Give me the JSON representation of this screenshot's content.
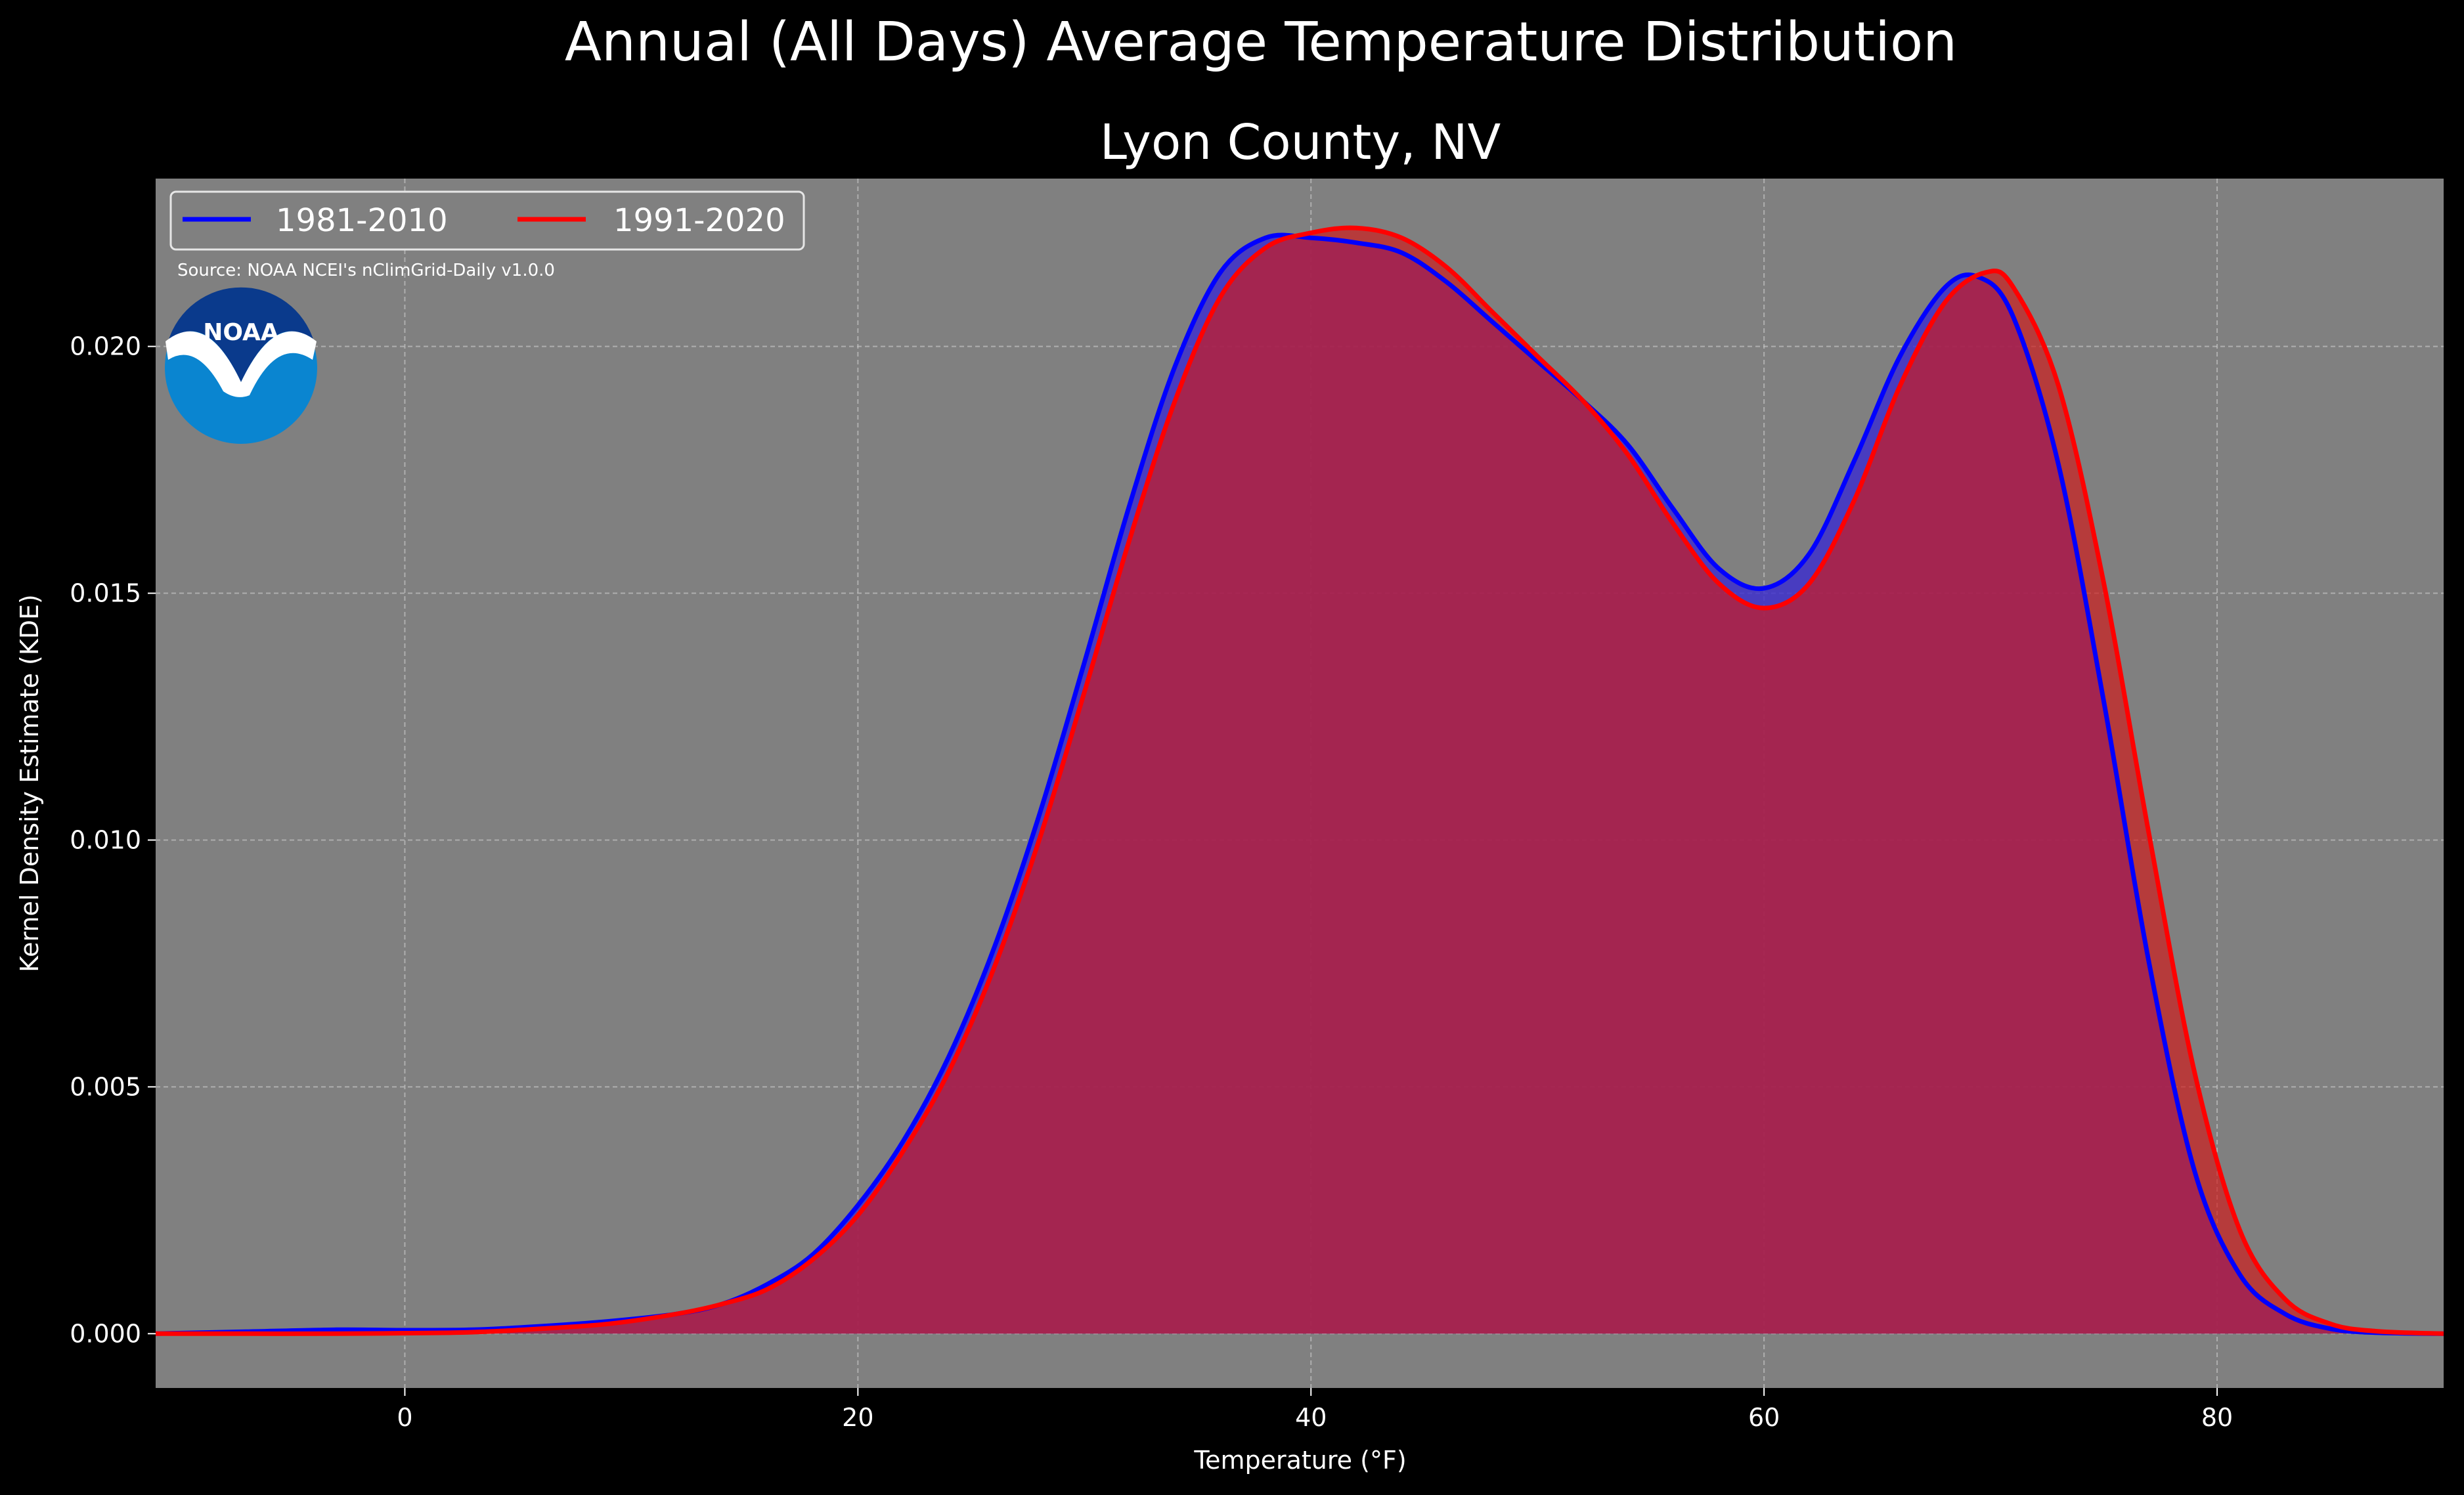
{
  "chart_data": {
    "type": "area",
    "suptitle": "Annual (All Days) Average Temperature Distribution",
    "title": "Lyon County, NV",
    "xlabel": "Temperature (°F)",
    "ylabel": "Kernel Density Estimate (KDE)",
    "xlim": [
      -11,
      90
    ],
    "ylim": [
      -0.0011,
      0.0234
    ],
    "x_ticks": [
      0,
      20,
      40,
      60,
      80
    ],
    "y_ticks": [
      0.0,
      0.005,
      0.01,
      0.015,
      0.02
    ],
    "x_tick_labels": [
      "0",
      "20",
      "40",
      "60",
      "80"
    ],
    "y_tick_labels": [
      "0.000",
      "0.005",
      "0.010",
      "0.015",
      "0.020"
    ],
    "grid": true,
    "legend_position": "top-left",
    "source_note": "Source: NOAA NCEI's nClimGrid-Daily v1.0.0",
    "background_color": "#000000",
    "plot_background_color": "#808080",
    "series": [
      {
        "name": "1981-2010",
        "color": "#0000ff",
        "fill_color": "#3a2ad0",
        "points": [
          [
            -11,
            0.0
          ],
          [
            -7,
            4e-05
          ],
          [
            -3,
            8e-05
          ],
          [
            0,
            7e-05
          ],
          [
            3,
            8e-05
          ],
          [
            6,
            0.00015
          ],
          [
            9,
            0.00025
          ],
          [
            12,
            0.0004
          ],
          [
            14,
            0.0006
          ],
          [
            16,
            0.001
          ],
          [
            18,
            0.0016
          ],
          [
            20,
            0.0026
          ],
          [
            22,
            0.0039
          ],
          [
            24,
            0.0056
          ],
          [
            26,
            0.0078
          ],
          [
            28,
            0.0105
          ],
          [
            30,
            0.0136
          ],
          [
            32,
            0.0168
          ],
          [
            34,
            0.0196
          ],
          [
            36,
            0.0215
          ],
          [
            38,
            0.0222
          ],
          [
            40,
            0.0222
          ],
          [
            42,
            0.0221
          ],
          [
            44,
            0.0219
          ],
          [
            46,
            0.0213
          ],
          [
            48,
            0.0205
          ],
          [
            50,
            0.0197
          ],
          [
            52,
            0.0189
          ],
          [
            54,
            0.018
          ],
          [
            56,
            0.0167
          ],
          [
            58,
            0.0155
          ],
          [
            60,
            0.0151
          ],
          [
            62,
            0.0158
          ],
          [
            64,
            0.0177
          ],
          [
            66,
            0.0198
          ],
          [
            68,
            0.0212
          ],
          [
            69.5,
            0.0214
          ],
          [
            71,
            0.0206
          ],
          [
            73,
            0.0176
          ],
          [
            75,
            0.0128
          ],
          [
            77,
            0.0075
          ],
          [
            79,
            0.0033
          ],
          [
            81,
            0.0012
          ],
          [
            83,
            0.0004
          ],
          [
            85,
            0.0001
          ],
          [
            87,
            2e-05
          ],
          [
            90,
            0.0
          ]
        ]
      },
      {
        "name": "1991-2020",
        "color": "#ff0000",
        "fill_color": "#d01a1a",
        "points": [
          [
            -11,
            0.0
          ],
          [
            -7,
            0.0
          ],
          [
            -3,
            0.0
          ],
          [
            0,
            1e-05
          ],
          [
            3,
            3e-05
          ],
          [
            6,
            0.0001
          ],
          [
            9,
            0.0002
          ],
          [
            12,
            0.0004
          ],
          [
            14,
            0.0006
          ],
          [
            16,
            0.0009
          ],
          [
            18,
            0.0015
          ],
          [
            20,
            0.0024
          ],
          [
            22,
            0.0037
          ],
          [
            24,
            0.0053
          ],
          [
            26,
            0.0074
          ],
          [
            28,
            0.01
          ],
          [
            30,
            0.013
          ],
          [
            32,
            0.0161
          ],
          [
            34,
            0.0189
          ],
          [
            36,
            0.021
          ],
          [
            38,
            0.022
          ],
          [
            40,
            0.0223
          ],
          [
            42,
            0.0224
          ],
          [
            44,
            0.0222
          ],
          [
            46,
            0.0216
          ],
          [
            48,
            0.0207
          ],
          [
            50,
            0.0198
          ],
          [
            52,
            0.0189
          ],
          [
            54,
            0.0178
          ],
          [
            56,
            0.0164
          ],
          [
            58,
            0.0152
          ],
          [
            60,
            0.0147
          ],
          [
            62,
            0.0152
          ],
          [
            64,
            0.0169
          ],
          [
            66,
            0.0192
          ],
          [
            68,
            0.0209
          ],
          [
            69.8,
            0.0215
          ],
          [
            71,
            0.0212
          ],
          [
            73,
            0.0192
          ],
          [
            75,
            0.0152
          ],
          [
            77,
            0.0101
          ],
          [
            79,
            0.0053
          ],
          [
            81,
            0.0021
          ],
          [
            83,
            0.0007
          ],
          [
            85,
            0.0002
          ],
          [
            87,
            5e-05
          ],
          [
            90,
            0.0
          ]
        ]
      }
    ]
  },
  "logo": {
    "text": "NOAA"
  }
}
